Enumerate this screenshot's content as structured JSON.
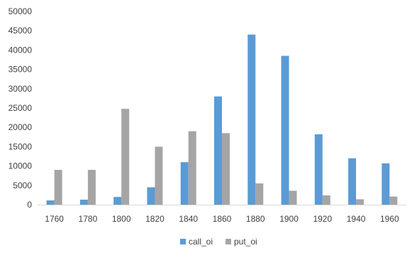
{
  "chart_data": {
    "type": "bar",
    "categories": [
      "1760",
      "1780",
      "1800",
      "1820",
      "1840",
      "1860",
      "1880",
      "1900",
      "1920",
      "1940",
      "1960"
    ],
    "series": [
      {
        "name": "call_oi",
        "color": "#5b9bd5",
        "values": [
          1100,
          1300,
          2000,
          4500,
          11000,
          28000,
          44000,
          38500,
          18200,
          12000,
          10700
        ]
      },
      {
        "name": "put_oi",
        "color": "#a5a5a5",
        "values": [
          9000,
          9000,
          24800,
          15000,
          19000,
          18500,
          5500,
          3600,
          2400,
          1400,
          2100
        ]
      }
    ],
    "ylim": [
      0,
      50000
    ],
    "yticks": [
      "0",
      "5000",
      "10000",
      "15000",
      "20000",
      "25000",
      "30000",
      "35000",
      "40000",
      "45000",
      "50000"
    ],
    "title": "",
    "xlabel": "",
    "ylabel": "",
    "grid": false,
    "legend": "bottom-center"
  }
}
